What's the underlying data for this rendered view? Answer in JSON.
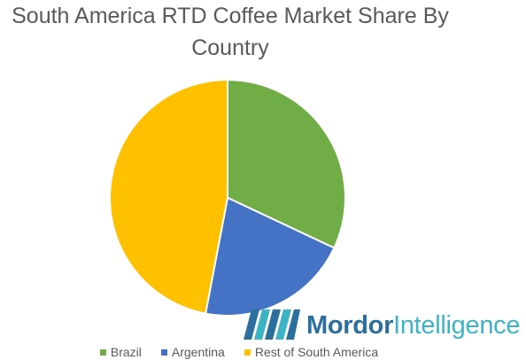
{
  "chart_data": {
    "type": "pie",
    "title": "South America RTD Coffee Market Share By Country",
    "categories": [
      "Brazil",
      "Argentina",
      "Rest of South America"
    ],
    "values": [
      32,
      21,
      47
    ],
    "colors": [
      "#70ad47",
      "#4472c4",
      "#ffc000"
    ],
    "start_angle_deg": 0,
    "direction": "clockwise",
    "legend_position": "bottom"
  },
  "title": {
    "line1": "South America RTD Coffee Market Share By",
    "line2": "Country"
  },
  "legend": [
    {
      "label": "Brazil",
      "color": "#70ad47"
    },
    {
      "label": "Argentina",
      "color": "#4472c4"
    },
    {
      "label": "Rest of South America",
      "color": "#ffc000"
    }
  ],
  "logo": {
    "word1": "Mordor",
    "word2": "Intelligence"
  }
}
